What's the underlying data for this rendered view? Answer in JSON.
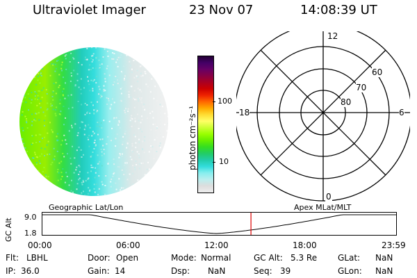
{
  "header": {
    "instrument": "Ultraviolet Imager",
    "date": "23 Nov 07",
    "time": "14:08:39 UT"
  },
  "colorbar": {
    "unit_label": "photon cm⁻²s⁻¹",
    "ticks": [
      "100",
      "10"
    ],
    "colors": [
      "#220033",
      "#440066",
      "#660066",
      "#880044",
      "#aa0022",
      "#cc0000",
      "#ee2200",
      "#ff6600",
      "#ffaa00",
      "#ffdd33",
      "#ffff66",
      "#ccff33",
      "#99ff00",
      "#66ee00",
      "#33dd22",
      "#22cc66",
      "#22ccaa",
      "#33dddd",
      "#88eeee",
      "#bbeeee",
      "#dddddd",
      "#eeeeee"
    ]
  },
  "polar_plot": {
    "mlt_labels": {
      "top": "12",
      "left": "18",
      "right": "6",
      "bottom": "0"
    },
    "lat_labels": [
      "60",
      "70",
      "80"
    ]
  },
  "timeline": {
    "left_title": "Geographic Lat/Lon",
    "right_title": "Apex MLat/MLT",
    "axis_label": "GC Alt",
    "y_top": "9.0",
    "y_bottom": "1.8",
    "x_ticks": [
      "00:00",
      "06:00",
      "12:00",
      "18:00",
      "23:59"
    ],
    "marker_time": "14:08:39"
  },
  "status": {
    "flt_label": "Flt:",
    "flt_value": "LBHL",
    "ip_label": "IP:",
    "ip_value": "36.0",
    "door_label": "Door:",
    "door_value": "Open",
    "gain_label": "Gain:",
    "gain_value": "14",
    "mode_label": "Mode:",
    "mode_value": "Normal",
    "dsp_label": "Dsp:",
    "dsp_value": "NaN",
    "gcalt_label": "GC Alt:",
    "gcalt_value": "5.3 Re",
    "seq_label": "Seq:",
    "seq_value": "39",
    "glat_label": "GLat:",
    "glat_value": "NaN",
    "glon_label": "GLon:",
    "glon_value": "NaN"
  }
}
